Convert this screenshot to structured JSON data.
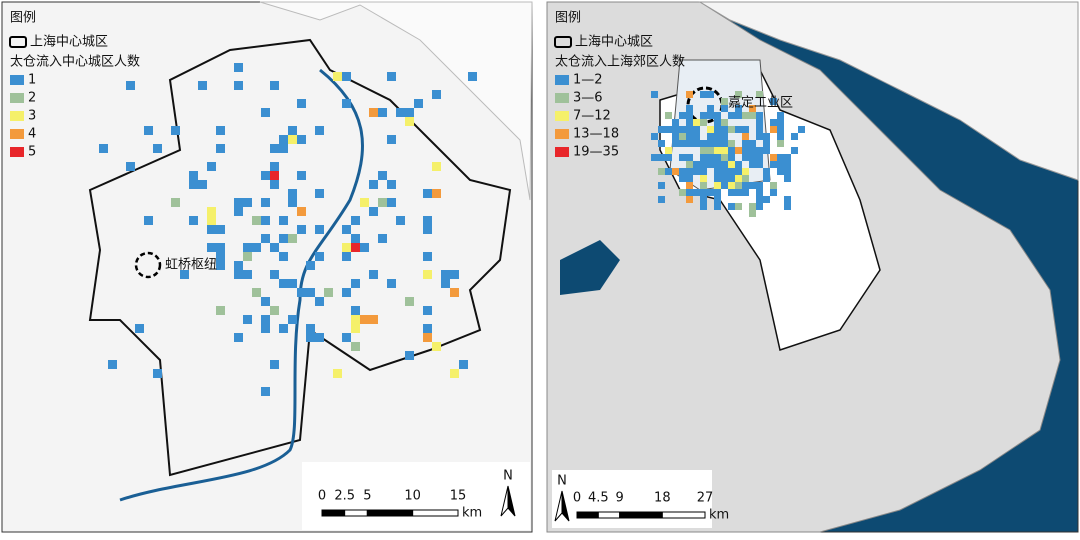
{
  "panels": [
    {
      "legend": {
        "title": "图例",
        "boundary": "上海中心城区",
        "subtitle": "太仓流入中心城区人数",
        "items": [
          {
            "label": "1",
            "color": "#3b8fd1"
          },
          {
            "label": "2",
            "color": "#9fc19a"
          },
          {
            "label": "3",
            "color": "#f5f06a"
          },
          {
            "label": "4",
            "color": "#f39a3c"
          },
          {
            "label": "5",
            "color": "#e8262a"
          }
        ]
      },
      "annotation": "虹桥枢纽",
      "scale": {
        "ticks": [
          0,
          2.5,
          5,
          10,
          15
        ],
        "unit": "km"
      },
      "north": "N"
    },
    {
      "legend": {
        "title": "图例",
        "boundary": "上海中心城区",
        "subtitle": "太仓流入上海郊区人数",
        "items": [
          {
            "label": "1—2",
            "color": "#3b8fd1"
          },
          {
            "label": "3—6",
            "color": "#9fc19a"
          },
          {
            "label": "7—12",
            "color": "#f5f06a"
          },
          {
            "label": "13—18",
            "color": "#f39a3c"
          },
          {
            "label": "19—35",
            "color": "#e8262a"
          }
        ]
      },
      "annotation": "嘉定工业区",
      "scale": {
        "ticks": [
          0,
          4.5,
          9,
          18,
          27
        ],
        "unit": "km"
      },
      "north": "N"
    }
  ]
}
